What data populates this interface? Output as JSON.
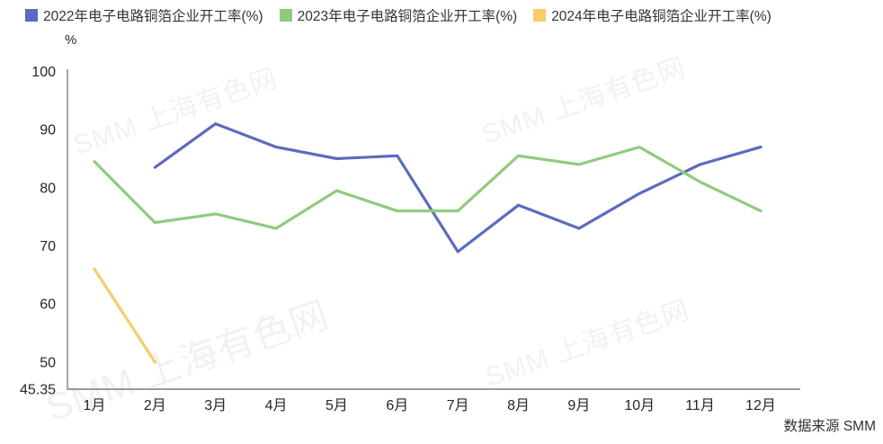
{
  "legend": {
    "items": [
      {
        "id": "2022",
        "label": "2022年电子电路铜箔企业开工率(%)",
        "color": "#5B6BBF"
      },
      {
        "id": "2023",
        "label": "2023年电子电路铜箔企业开工率(%)",
        "color": "#8FCB7D"
      },
      {
        "id": "2024",
        "label": "2024年电子电路铜箔企业开工率(%)",
        "color": "#F8CC69"
      }
    ]
  },
  "watermark_text": "SMM 上海有色网",
  "source_note": "数据来源 SMM",
  "chart_data": {
    "type": "line",
    "title": "",
    "xlabel": "",
    "ylabel": "%",
    "categories": [
      "1月",
      "2月",
      "3月",
      "4月",
      "5月",
      "6月",
      "7月",
      "8月",
      "9月",
      "10月",
      "11月",
      "12月"
    ],
    "series": [
      {
        "id": "2022",
        "name": "2022年电子电路铜箔企业开工率(%)",
        "color": "#5B6BBF",
        "values": [
          null,
          83.5,
          91,
          87,
          85,
          85.5,
          69,
          77,
          73,
          79,
          84,
          87
        ]
      },
      {
        "id": "2023",
        "name": "2023年电子电路铜箔企业开工率(%)",
        "color": "#8FCB7D",
        "values": [
          84.5,
          74,
          75.5,
          73,
          79.5,
          76,
          76,
          85.5,
          84,
          87,
          81,
          76
        ]
      },
      {
        "id": "2024",
        "name": "2024年电子电路铜箔企业开工率(%)",
        "color": "#F8CC69",
        "values": [
          66,
          50,
          null,
          null,
          null,
          null,
          null,
          null,
          null,
          null,
          null,
          null
        ]
      }
    ],
    "ylim": [
      45.35,
      100
    ],
    "y_ticks": [
      100,
      90,
      80,
      70,
      60,
      50,
      45.35
    ],
    "grid": false,
    "legend_position": "top",
    "axis_color": "#8c8c8c",
    "tick_text_color": "#262626"
  }
}
